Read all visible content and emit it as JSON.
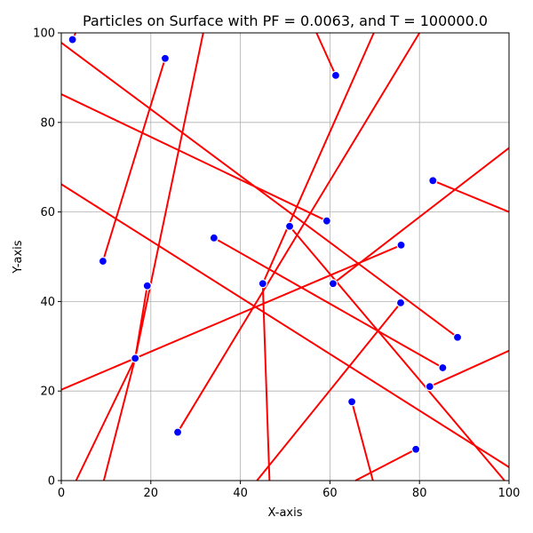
{
  "chart_data": {
    "type": "scatter",
    "title": "Particles on Surface with PF = 0.0063, and T = 100000.0",
    "xlabel": "X-axis",
    "ylabel": "Y-axis",
    "xlim": [
      0,
      100
    ],
    "ylim": [
      0,
      100
    ],
    "xticks": [
      0,
      20,
      40,
      60,
      80,
      100
    ],
    "yticks": [
      0,
      20,
      40,
      60,
      80,
      100
    ],
    "grid": true,
    "point_color": "#0000ff",
    "line_color": "#ff0000",
    "points": [
      {
        "x": 2.5,
        "y": 98.5
      },
      {
        "x": 23.2,
        "y": 94.3
      },
      {
        "x": 61.3,
        "y": 90.5
      },
      {
        "x": 83.0,
        "y": 67.0
      },
      {
        "x": 59.3,
        "y": 58.0
      },
      {
        "x": 51.0,
        "y": 56.8
      },
      {
        "x": 34.1,
        "y": 54.2
      },
      {
        "x": 75.9,
        "y": 52.6
      },
      {
        "x": 9.3,
        "y": 49.0
      },
      {
        "x": 45.0,
        "y": 44.0
      },
      {
        "x": 60.7,
        "y": 44.0
      },
      {
        "x": 19.2,
        "y": 43.5
      },
      {
        "x": 75.8,
        "y": 39.7
      },
      {
        "x": 88.5,
        "y": 32.0
      },
      {
        "x": 16.5,
        "y": 27.3
      },
      {
        "x": 85.2,
        "y": 25.2
      },
      {
        "x": 82.3,
        "y": 21.0
      },
      {
        "x": 64.9,
        "y": 17.6
      },
      {
        "x": 26.0,
        "y": 10.8
      },
      {
        "x": 79.2,
        "y": 7.0
      }
    ],
    "segments": [
      {
        "x1": 2.5,
        "y1": 98.5,
        "x2": 3.2,
        "y2": 100
      },
      {
        "x1": 23.2,
        "y1": 94.3,
        "x2": 9.3,
        "y2": 49.0
      },
      {
        "x1": 61.3,
        "y1": 90.5,
        "x2": 57.0,
        "y2": 100
      },
      {
        "x1": 83.0,
        "y1": 67.0,
        "x2": 100,
        "y2": 60.0
      },
      {
        "x1": 0,
        "y1": 97.8,
        "x2": 88.5,
        "y2": 32.0
      },
      {
        "x1": 0,
        "y1": 86.3,
        "x2": 59.3,
        "y2": 58.0
      },
      {
        "x1": 51.0,
        "y1": 56.8,
        "x2": 99.0,
        "y2": 0
      },
      {
        "x1": 34.1,
        "y1": 54.2,
        "x2": 85.2,
        "y2": 25.2
      },
      {
        "x1": 0,
        "y1": 20.3,
        "x2": 75.9,
        "y2": 52.6
      },
      {
        "x1": 0,
        "y1": 66.2,
        "x2": 100,
        "y2": 3.0
      },
      {
        "x1": 45.0,
        "y1": 44.0,
        "x2": 46.5,
        "y2": 0
      },
      {
        "x1": 45.0,
        "y1": 44.0,
        "x2": 69.8,
        "y2": 100
      },
      {
        "x1": 60.7,
        "y1": 44.0,
        "x2": 100,
        "y2": 74.3
      },
      {
        "x1": 19.2,
        "y1": 43.5,
        "x2": 16.5,
        "y2": 27.3
      },
      {
        "x1": 16.5,
        "y1": 27.3,
        "x2": 31.7,
        "y2": 100
      },
      {
        "x1": 3.3,
        "y1": 0,
        "x2": 16.5,
        "y2": 27.3
      },
      {
        "x1": 9.5,
        "y1": 0,
        "x2": 16.5,
        "y2": 27.3
      },
      {
        "x1": 26.0,
        "y1": 10.8,
        "x2": 80.0,
        "y2": 100
      },
      {
        "x1": 75.8,
        "y1": 39.7,
        "x2": 43.7,
        "y2": 0
      },
      {
        "x1": 82.3,
        "y1": 21.0,
        "x2": 100,
        "y2": 29.0
      },
      {
        "x1": 64.9,
        "y1": 17.6,
        "x2": 69.6,
        "y2": 0
      },
      {
        "x1": 79.2,
        "y1": 7.0,
        "x2": 65.7,
        "y2": 0
      }
    ]
  }
}
